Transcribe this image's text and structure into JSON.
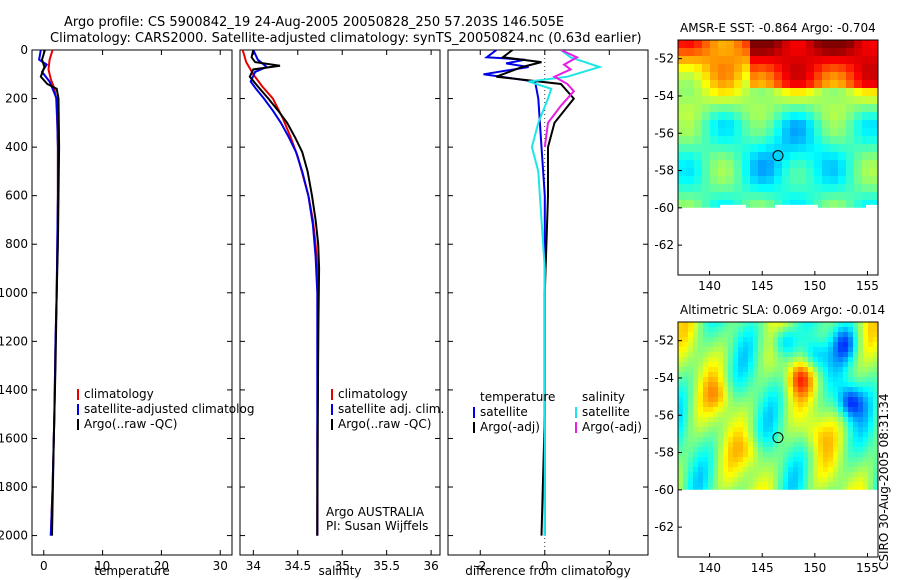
{
  "header": {
    "line1": "Argo profile: CS 5900842_19 24-Aug-2005 20050828_250 57.203S 146.505E",
    "line2": "Climatology: CARS2000. Satellite-adjusted climatology: synTS_20050824.nc (0.63d earlier)"
  },
  "side_stamp": "CSIRO 30-Aug-2005 08:31:34",
  "colors": {
    "red": "#e60000",
    "blue": "#0000e6",
    "black": "#000000",
    "cyan": "#1ee6e6",
    "magenta": "#e61ee6"
  },
  "chart_data": [
    {
      "id": "temperature",
      "type": "line",
      "xlabel": "temperature",
      "xlim": [
        -2,
        32
      ],
      "ylim": [
        2080,
        0
      ],
      "xticks": [
        0,
        10,
        20,
        30
      ],
      "xtick_labels": [
        "0",
        "10",
        "20",
        "30"
      ],
      "yticks": [
        0,
        200,
        400,
        600,
        800,
        1000,
        1200,
        1400,
        1600,
        1800,
        2000
      ],
      "ytick_labels": [
        "0",
        "200",
        "400",
        "600",
        "800",
        "1000",
        "1200",
        "1400",
        "1600",
        "1800",
        "2000"
      ],
      "legend": [
        "climatology",
        "satellite-adjusted climatolog",
        "Argo(..raw -QC)"
      ],
      "series": [
        {
          "name": "climatology",
          "color": "red",
          "x": [
            1.5,
            1.0,
            0.8,
            1.2,
            1.8,
            2.1,
            2.3,
            2.4,
            2.4,
            2.3,
            2.2,
            2.0,
            1.8,
            1.5,
            1.2
          ],
          "y": [
            0,
            40,
            80,
            120,
            160,
            200,
            300,
            400,
            600,
            800,
            1000,
            1200,
            1500,
            1800,
            2000
          ]
        },
        {
          "name": "satellite-adjusted climatology",
          "color": "blue",
          "x": [
            -0.5,
            -0.8,
            0.5,
            -0.3,
            1.0,
            2.2,
            2.4,
            2.4,
            2.3,
            2.2,
            2.0,
            1.8,
            1.5,
            1.2
          ],
          "y": [
            0,
            40,
            60,
            90,
            130,
            200,
            400,
            600,
            800,
            1000,
            1200,
            1500,
            1800,
            2000
          ]
        },
        {
          "name": "Argo",
          "color": "black",
          "x": [
            0.2,
            -0.3,
            0.1,
            -0.5,
            0.6,
            2.2,
            2.5,
            2.6,
            2.5,
            2.4,
            2.2,
            2.0,
            1.7,
            1.4
          ],
          "y": [
            0,
            40,
            70,
            110,
            140,
            160,
            200,
            400,
            600,
            800,
            1000,
            1300,
            1600,
            2000
          ]
        }
      ]
    },
    {
      "id": "salinity",
      "type": "line",
      "xlabel": "salinity",
      "xlim": [
        33.85,
        36.1
      ],
      "ylim": [
        2080,
        0
      ],
      "xticks": [
        34,
        34.5,
        35,
        35.5,
        36
      ],
      "xtick_labels": [
        "34",
        "34.5",
        "35",
        "35.5",
        "36"
      ],
      "legend": [
        "climatology",
        "satellite adj. clim.",
        "Argo(..raw -QC)"
      ],
      "annotation": [
        "Argo AUSTRALIA",
        "PI: Susan Wijffels"
      ],
      "series": [
        {
          "name": "climatology",
          "color": "red",
          "x": [
            33.88,
            33.92,
            34.0,
            34.1,
            34.22,
            34.33,
            34.42,
            34.5,
            34.56,
            34.62,
            34.67,
            34.7,
            34.72,
            34.73,
            34.73,
            34.72,
            34.72
          ],
          "y": [
            0,
            50,
            100,
            150,
            200,
            280,
            360,
            440,
            520,
            600,
            700,
            800,
            900,
            1000,
            1200,
            1600,
            2000
          ]
        },
        {
          "name": "satellite adj. clim.",
          "color": "blue",
          "x": [
            34.0,
            34.05,
            34.15,
            34.02,
            33.97,
            34.03,
            34.12,
            34.22,
            34.31,
            34.4,
            34.48,
            34.55,
            34.62,
            34.67,
            34.7,
            34.72,
            34.72,
            34.72
          ],
          "y": [
            0,
            40,
            70,
            90,
            130,
            160,
            200,
            250,
            300,
            360,
            420,
            500,
            600,
            720,
            850,
            1000,
            1400,
            2000
          ]
        },
        {
          "name": "Argo",
          "color": "black",
          "x": [
            34.0,
            33.98,
            34.02,
            34.3,
            34.0,
            33.96,
            34.05,
            34.17,
            34.28,
            34.38,
            34.47,
            34.55,
            34.61,
            34.66,
            34.7,
            34.73,
            34.74,
            34.73,
            34.72
          ],
          "y": [
            0,
            30,
            50,
            65,
            80,
            110,
            150,
            200,
            250,
            300,
            360,
            420,
            500,
            600,
            700,
            800,
            900,
            1200,
            2000
          ]
        }
      ]
    },
    {
      "id": "difference",
      "type": "line",
      "xlabel": "difference from climatology",
      "xlim": [
        -3,
        3.2
      ],
      "ylim": [
        2080,
        0
      ],
      "xticks": [
        -2,
        0,
        2
      ],
      "xtick_labels": [
        "-2",
        "0",
        "2"
      ],
      "legend_left_title": "temperature",
      "legend_left": [
        "satellite",
        "Argo(-adj)"
      ],
      "legend_right_title": "salinity",
      "legend_right": [
        "satellite",
        "Argo(-adj)"
      ],
      "series": [
        {
          "name": "temperature satellite",
          "color": "blue",
          "x": [
            -1.5,
            -1.8,
            -0.6,
            -1.2,
            -0.5,
            -1.9,
            -0.3,
            -0.2,
            -0.1,
            0.0,
            0.0,
            0.0,
            0.0,
            0.0
          ],
          "y": [
            0,
            30,
            40,
            55,
            70,
            100,
            130,
            200,
            400,
            600,
            800,
            1000,
            1500,
            2000
          ]
        },
        {
          "name": "temperature Argo(-adj)",
          "color": "black",
          "x": [
            -1.0,
            -1.3,
            -0.1,
            -0.7,
            -1.5,
            0.5,
            0.9,
            0.3,
            0.1,
            0.1,
            0.05,
            0.0,
            0.0,
            -0.1
          ],
          "y": [
            0,
            30,
            50,
            70,
            110,
            140,
            200,
            300,
            400,
            600,
            800,
            1000,
            1500,
            2000
          ]
        },
        {
          "name": "salinity satellite",
          "color": "cyan",
          "x": [
            0.5,
            0.8,
            1.7,
            0.7,
            -0.5,
            0.2,
            0.1,
            -0.2,
            -0.4,
            -0.2,
            -0.1,
            0.0,
            0.0,
            0.0,
            0.0
          ],
          "y": [
            0,
            30,
            70,
            110,
            130,
            160,
            200,
            300,
            400,
            500,
            700,
            900,
            1200,
            1600,
            2000
          ]
        },
        {
          "name": "salinity Argo(-adj)",
          "color": "magenta",
          "x": [
            0.5,
            1.0,
            0.6,
            0.8,
            0.3,
            0.7,
            0.9,
            0.5,
            0.1,
            0.0
          ],
          "y": [
            0,
            30,
            60,
            80,
            110,
            140,
            170,
            230,
            300,
            400
          ]
        }
      ]
    },
    {
      "id": "sst_map",
      "type": "heatmap",
      "title": "AMSR-E SST: -0.864  Argo: -0.704",
      "xlim": [
        137,
        156
      ],
      "ylim": [
        -63.6,
        -51
      ],
      "xticks": [
        140,
        145,
        150,
        155
      ],
      "xtick_labels": [
        "140",
        "145",
        "150",
        "155"
      ],
      "yticks": [
        -52,
        -54,
        -56,
        -58,
        -60,
        -62
      ],
      "ytick_labels": [
        "-52",
        "-54",
        "-56",
        "-58",
        "-60",
        "-62"
      ],
      "data_lat_min": -60,
      "marker": {
        "lon": 146.5,
        "lat": -57.2
      }
    },
    {
      "id": "sla_map",
      "type": "heatmap",
      "title": "Altimetric SLA: 0.069  Argo: -0.014",
      "xlim": [
        137,
        156
      ],
      "ylim": [
        -63.6,
        -51
      ],
      "xticks": [
        140,
        145,
        150,
        155
      ],
      "xtick_labels": [
        "140",
        "145",
        "150",
        "155"
      ],
      "yticks": [
        -52,
        -54,
        -56,
        -58,
        -60,
        -62
      ],
      "ytick_labels": [
        "-52",
        "-54",
        "-56",
        "-58",
        "-60",
        "-62"
      ],
      "data_lat_min": -60,
      "marker": {
        "lon": 146.5,
        "lat": -57.2
      }
    }
  ]
}
